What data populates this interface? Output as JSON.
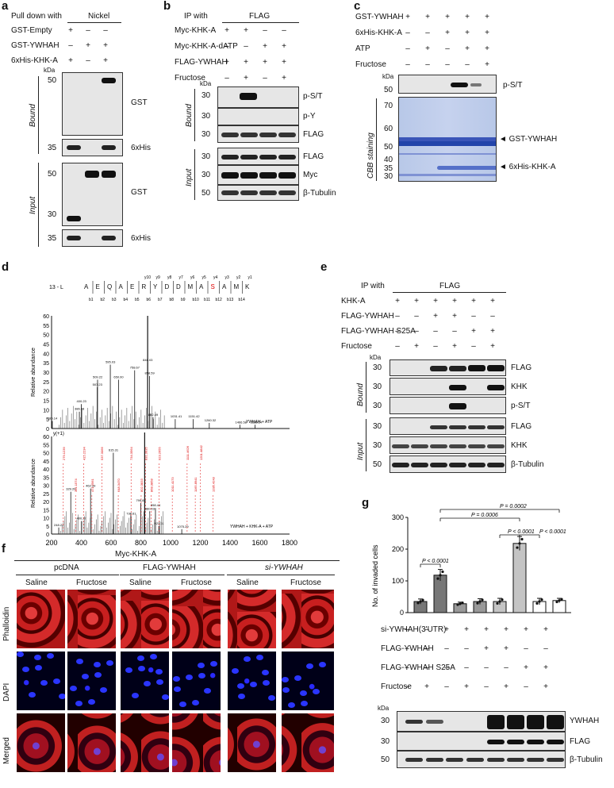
{
  "panels": {
    "a": {
      "label": "a",
      "header_left": "Pull down with",
      "header_right": "Nickel",
      "rows": [
        {
          "name": "GST-Empty",
          "marks": [
            "+",
            "–",
            "–"
          ]
        },
        {
          "name": "GST-YWHAH",
          "marks": [
            "–",
            "+",
            "+"
          ]
        },
        {
          "name": "6xHis-KHK-A",
          "marks": [
            "+",
            "–",
            "+"
          ]
        }
      ],
      "kda": "kDa",
      "bound_label": "Bound",
      "input_label": "Input",
      "bound_mw": [
        "50",
        "35"
      ],
      "input_mw": [
        "50",
        "30",
        "35"
      ],
      "bands_bound": [
        "GST",
        "6xHis"
      ],
      "bands_input": [
        "GST",
        "6xHis"
      ]
    },
    "b": {
      "label": "b",
      "header_left": "IP with",
      "header_right": "FLAG",
      "rows": [
        {
          "name": "Myc-KHK-A",
          "marks": [
            "+",
            "+",
            "–",
            "–"
          ]
        },
        {
          "name": "Myc-KHK-A-dATP",
          "marks": [
            "–",
            "–",
            "+",
            "+"
          ]
        },
        {
          "name": "FLAG-YWHAH",
          "marks": [
            "+",
            "+",
            "+",
            "+"
          ]
        },
        {
          "name": "Fructose",
          "marks": [
            "–",
            "+",
            "–",
            "+"
          ]
        }
      ],
      "kda": "kDa",
      "bound_label": "Bound",
      "input_label": "Input",
      "bound_mw": [
        "30",
        "30",
        "30"
      ],
      "input_mw": [
        "30",
        "30",
        "50"
      ],
      "bands_bound": [
        "p-S/T",
        "p-Y",
        "FLAG"
      ],
      "bands_input": [
        "FLAG",
        "Myc",
        "β-Tubulin"
      ]
    },
    "c": {
      "label": "c",
      "rows": [
        {
          "name": "GST-YWHAH",
          "marks": [
            "+",
            "+",
            "+",
            "+",
            "+"
          ]
        },
        {
          "name": "6xHis-KHK-A",
          "marks": [
            "–",
            "–",
            "+",
            "+",
            "+"
          ]
        },
        {
          "name": "ATP",
          "marks": [
            "–",
            "+",
            "–",
            "+",
            "+"
          ]
        },
        {
          "name": "Fructose",
          "marks": [
            "–",
            "–",
            "–",
            "–",
            "+"
          ]
        }
      ],
      "kda": "kDa",
      "top_mw": "50",
      "top_band": "p-S/T",
      "cbb_label": "CBB staining",
      "cbb_mw": [
        "70",
        "60",
        "50",
        "40",
        "35",
        "30"
      ],
      "arrow_labels": [
        "◄ GST-YWHAH",
        "◄ 6xHis-KHK-A"
      ]
    },
    "d": {
      "label": "d",
      "peptide_prefix": "13 - L",
      "peptide": [
        "A",
        "E",
        "Q",
        "A",
        "E",
        "R",
        "Y",
        "D",
        "D",
        "M",
        "A",
        "S",
        "A",
        "M",
        "K"
      ],
      "y_ions": [
        "y10",
        "y9",
        "y8",
        "y7",
        "y6",
        "y5",
        "y4",
        "y3",
        "y2",
        "y1"
      ],
      "b_ions": [
        "b1",
        "b2",
        "b3",
        "b4",
        "b5",
        "b6",
        "b7",
        "b8",
        "b9",
        "b10",
        "b11",
        "b12",
        "b13",
        "b14"
      ],
      "ylabel": "Relative abundance",
      "xlabel": "m/z",
      "top_caption": "YWHAH + ATP",
      "bottom_caption": "YWHAH + KHK-A + ATP",
      "y_ticks": [
        "0",
        "5",
        "10",
        "15",
        "20",
        "25",
        "30",
        "35",
        "40",
        "45",
        "50",
        "55",
        "60"
      ],
      "x_ticks": [
        "200",
        "400",
        "600",
        "800",
        "1000",
        "1200",
        "1400",
        "1600",
        "1800"
      ],
      "top_peaks": [
        "595.03",
        "509.22",
        "507.23",
        "400.23",
        "386.98",
        "185.14",
        "650.00",
        "758.67",
        "846.03",
        "858.59",
        "882.49",
        "1031.41",
        "1151.42",
        "1260.32",
        "1466.58",
        "1568.54"
      ],
      "red_labels": [
        "279.1239",
        "361.1574",
        "415.2234",
        "471.2561",
        "537.3066",
        "648.3470",
        "734.3564",
        "802.3833",
        "831.3935",
        "868.3858",
        "923.2655",
        "1011.4173",
        "1111.4626",
        "1165.8941",
        "1201.4842",
        "1285.4243"
      ],
      "bottom_peaks": [
        "615.31",
        "462.29",
        "329.20",
        "400.27",
        "248.22",
        "734.61",
        "799.83",
        "860.03",
        "898.44",
        "923.31",
        "1075.29"
      ],
      "y1_label": "y(+1)"
    },
    "e": {
      "label": "e",
      "header_left": "IP with",
      "header_right": "FLAG",
      "rows": [
        {
          "name": "KHK-A",
          "marks": [
            "+",
            "+",
            "+",
            "+",
            "+",
            "+"
          ]
        },
        {
          "name": "FLAG-YWHAH",
          "marks": [
            "–",
            "–",
            "+",
            "+",
            "–",
            "–"
          ]
        },
        {
          "name": "FLAG-YWHAH S25A",
          "marks": [
            "–",
            "–",
            "–",
            "–",
            "+",
            "+"
          ]
        },
        {
          "name": "Fructose",
          "marks": [
            "–",
            "+",
            "–",
            "+",
            "–",
            "+"
          ]
        }
      ],
      "kda": "kDa",
      "bound_label": "Bound",
      "input_label": "Input",
      "bound_mw": [
        "30",
        "30",
        "30"
      ],
      "input_mw": [
        "30",
        "30",
        "50"
      ],
      "bands_bound": [
        "FLAG",
        "KHK",
        "p-S/T"
      ],
      "bands_input": [
        "FLAG",
        "KHK",
        "β-Tubulin"
      ]
    },
    "f": {
      "label": "f",
      "title": "Myc-KHK-A",
      "groups": [
        "pcDNA",
        "FLAG-YWHAH",
        "si-YWHAH"
      ],
      "conditions": [
        "Saline",
        "Fructose",
        "Saline",
        "Fructose",
        "Saline",
        "Fructose"
      ],
      "row_labels": [
        "Phalloidin",
        "DAPI",
        "Merged"
      ]
    },
    "g": {
      "label": "g",
      "ylabel": "No. of invaded cells",
      "y_ticks": [
        "0",
        "100",
        "200",
        "300"
      ],
      "pvalues": [
        "P = 0.0002",
        "P = 0.0006",
        "P < 0.0001",
        "P < 0.0001",
        "P < 0.0001"
      ],
      "rows": [
        {
          "name": "si-YWHAH(3'UTR)",
          "marks": [
            "–",
            "–",
            "+",
            "+",
            "+",
            "+",
            "+",
            "+"
          ]
        },
        {
          "name": "FLAG-YWHAH",
          "marks": [
            "–",
            "–",
            "–",
            "–",
            "+",
            "+",
            "–",
            "–"
          ]
        },
        {
          "name": "FLAG-YWHAH S25A",
          "marks": [
            "–",
            "–",
            "–",
            "–",
            "–",
            "–",
            "+",
            "+"
          ]
        },
        {
          "name": "Fructose",
          "marks": [
            "–",
            "+",
            "–",
            "+",
            "–",
            "+",
            "–",
            "+"
          ]
        }
      ],
      "kda": "kDa",
      "blot_mw": [
        "30",
        "30",
        "50"
      ],
      "blot_labels": [
        "YWHAH",
        "FLAG",
        "β-Tubulin"
      ]
    }
  },
  "chart_data": {
    "type": "bar",
    "categories": [
      "1",
      "2",
      "3",
      "4",
      "5",
      "6",
      "7",
      "8"
    ],
    "values": [
      35,
      118,
      28,
      35,
      35,
      218,
      35,
      38
    ],
    "errors": [
      8,
      18,
      5,
      9,
      10,
      22,
      10,
      7
    ],
    "colors": [
      "#777777",
      "#777777",
      "#999999",
      "#999999",
      "#c4c4c4",
      "#c4c4c4",
      "#ffffff",
      "#ffffff"
    ],
    "ylabel": "No. of invaded cells",
    "ylim": [
      0,
      300
    ]
  }
}
